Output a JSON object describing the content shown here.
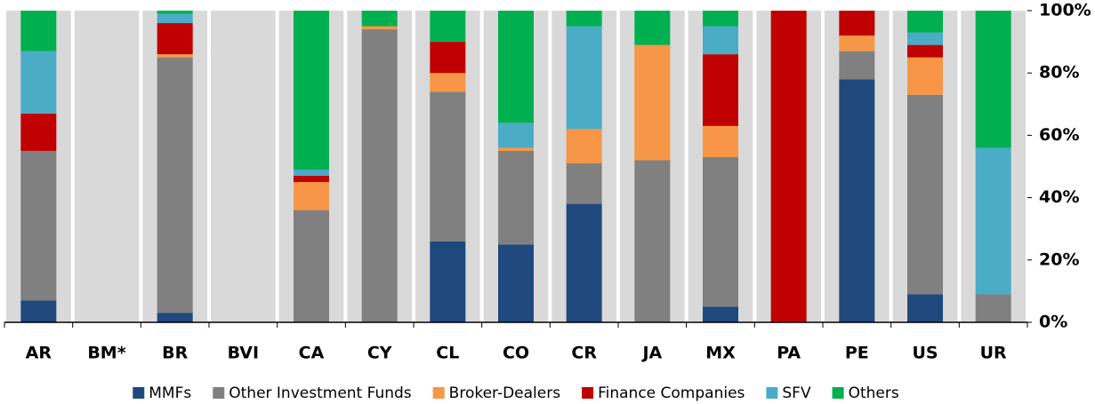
{
  "chart_data": {
    "type": "stacked_bar",
    "categories": [
      "AR",
      "BM*",
      "BR",
      "BVI",
      "CA",
      "CY",
      "CL",
      "CO",
      "CR",
      "JA",
      "MX",
      "PA",
      "PE",
      "US",
      "UR"
    ],
    "series": [
      {
        "name": "MMFs",
        "color": "#1f497d",
        "values": [
          7,
          null,
          3,
          null,
          0,
          0,
          26,
          25,
          38,
          0,
          5,
          0,
          78,
          9,
          0
        ]
      },
      {
        "name": "Other Investment Funds",
        "color": "#808080",
        "values": [
          48,
          null,
          82,
          null,
          36,
          94,
          48,
          30,
          13,
          52,
          48,
          0,
          9,
          64,
          9
        ]
      },
      {
        "name": "Broker-Dealers",
        "color": "#f79646",
        "values": [
          0,
          null,
          1,
          null,
          9,
          1,
          6,
          1,
          11,
          37,
          10,
          0,
          5,
          12,
          0
        ]
      },
      {
        "name": "Finance Companies",
        "color": "#c00000",
        "values": [
          12,
          null,
          10,
          null,
          2,
          0,
          10,
          0,
          0,
          0,
          23,
          100,
          8,
          4,
          0
        ]
      },
      {
        "name": "SFV",
        "color": "#4bacc6",
        "values": [
          20,
          null,
          3,
          null,
          2,
          0,
          0,
          8,
          33,
          0,
          9,
          0,
          0,
          4,
          47
        ]
      },
      {
        "name": "Others",
        "color": "#00b050",
        "values": [
          13,
          null,
          1,
          null,
          51,
          5,
          10,
          36,
          5,
          11,
          5,
          0,
          0,
          7,
          44
        ]
      }
    ],
    "ylim": [
      0,
      100
    ],
    "yticks": [
      {
        "value": 0,
        "label": "0%"
      },
      {
        "value": 20,
        "label": "20%"
      },
      {
        "value": 40,
        "label": "40%"
      },
      {
        "value": 60,
        "label": "60%"
      },
      {
        "value": 80,
        "label": "80%"
      },
      {
        "value": 100,
        "label": "100%"
      }
    ]
  }
}
